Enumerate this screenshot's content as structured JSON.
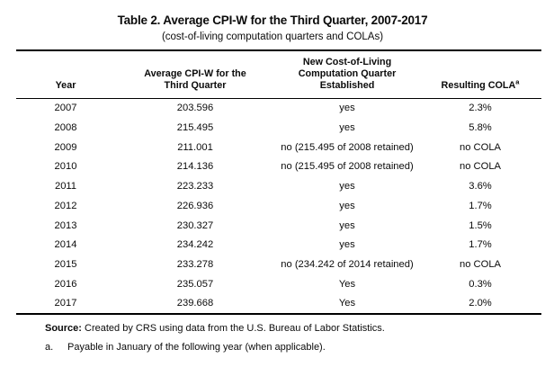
{
  "page": {
    "title": "Table 2. Average CPI-W for the Third Quarter, 2007-2017",
    "subtitle": "(cost-of-living computation quarters and COLAs)"
  },
  "table": {
    "headers": {
      "year": "Year",
      "cpiw_line1": "Average CPI-W for the",
      "cpiw_line2": "Third Quarter",
      "quarter_line1": "New Cost-of-Living",
      "quarter_line2": "Computation Quarter",
      "quarter_line3": "Established",
      "cola": "Resulting COLA",
      "cola_footnote_marker": "a"
    },
    "rows": [
      {
        "year": "2007",
        "cpiw": "203.596",
        "quarter": "yes",
        "cola": "2.3%"
      },
      {
        "year": "2008",
        "cpiw": "215.495",
        "quarter": "yes",
        "cola": "5.8%"
      },
      {
        "year": "2009",
        "cpiw": "211.001",
        "quarter": "no (215.495 of 2008 retained)",
        "cola": "no COLA"
      },
      {
        "year": "2010",
        "cpiw": "214.136",
        "quarter": "no (215.495 of 2008 retained)",
        "cola": "no COLA"
      },
      {
        "year": "2011",
        "cpiw": "223.233",
        "quarter": "yes",
        "cola": "3.6%"
      },
      {
        "year": "2012",
        "cpiw": "226.936",
        "quarter": "yes",
        "cola": "1.7%"
      },
      {
        "year": "2013",
        "cpiw": "230.327",
        "quarter": "yes",
        "cola": "1.5%"
      },
      {
        "year": "2014",
        "cpiw": "234.242",
        "quarter": "yes",
        "cola": "1.7%"
      },
      {
        "year": "2015",
        "cpiw": "233.278",
        "quarter": "no (234.242 of 2014 retained)",
        "cola": "no COLA"
      },
      {
        "year": "2016",
        "cpiw": "235.057",
        "quarter": "Yes",
        "cola": "0.3%"
      },
      {
        "year": "2017",
        "cpiw": "239.668",
        "quarter": "Yes",
        "cola": "2.0%"
      }
    ]
  },
  "notes": {
    "source_label": "Source:",
    "source_text": " Created by CRS using data from the U.S. Bureau of Labor Statistics.",
    "footnote_marker": "a.",
    "footnote_text": "Payable in January of the following year (when applicable)."
  }
}
